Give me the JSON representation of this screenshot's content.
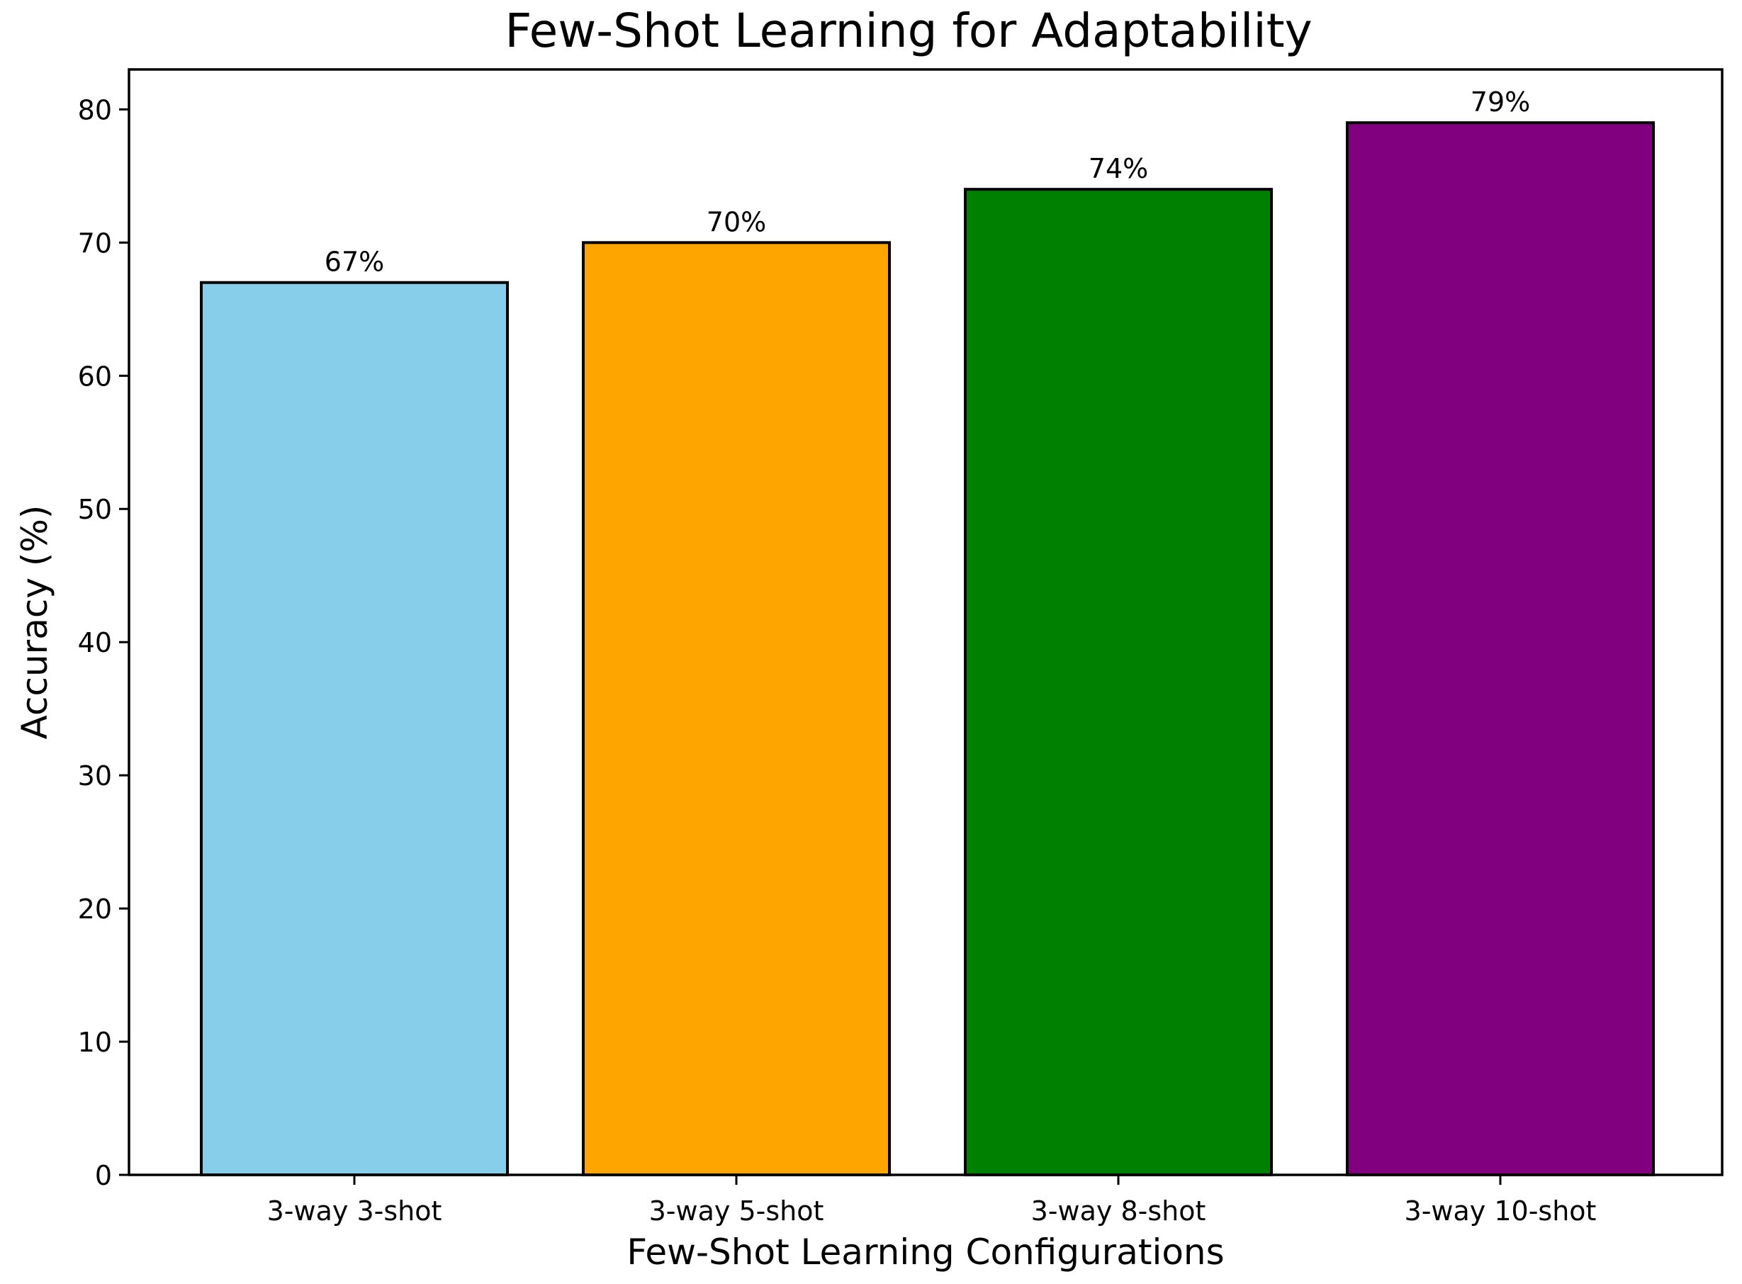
{
  "chart_data": {
    "type": "bar",
    "title": "Few-Shot Learning for Adaptability",
    "xlabel": "Few-Shot Learning Configurations",
    "ylabel": "Accuracy (%)",
    "categories": [
      "3-way 3-shot",
      "3-way 5-shot",
      "3-way 8-shot",
      "3-way 10-shot"
    ],
    "values": [
      67,
      70,
      74,
      79
    ],
    "value_labels": [
      "67%",
      "70%",
      "74%",
      "79%"
    ],
    "colors": [
      "#87ceeb",
      "#ffa500",
      "#008000",
      "#800080"
    ],
    "edge_color": "#000000",
    "ylim": [
      0,
      83
    ],
    "yticks": [
      0,
      10,
      20,
      30,
      40,
      50,
      60,
      70,
      80
    ],
    "grid": false,
    "legend": "none"
  }
}
